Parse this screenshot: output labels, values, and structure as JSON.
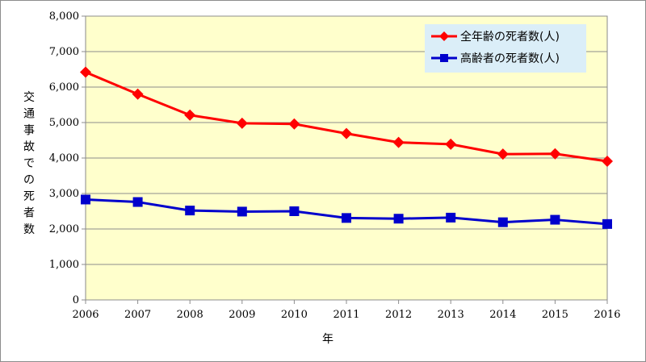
{
  "chart_data": {
    "type": "line",
    "x": [
      2006,
      2007,
      2008,
      2009,
      2010,
      2011,
      2012,
      2013,
      2014,
      2015,
      2016
    ],
    "x_tick_labels": [
      "2006",
      "2007",
      "2008",
      "2009",
      "2010",
      "2011",
      "2012",
      "2013",
      "2014",
      "2015",
      "2016"
    ],
    "y_tick_labels": [
      "0",
      "1,000",
      "2,000",
      "3,000",
      "4,000",
      "5,000",
      "6,000",
      "7,000",
      "8,000"
    ],
    "ylim": [
      0,
      8000
    ],
    "xlabel": "年",
    "ylabel": "交通事故での死者数",
    "grid": true,
    "legend_position": "top-right",
    "plot_background": "#ffffcc",
    "series": [
      {
        "name": "全年齢の死者数(人)",
        "color": "#ff0000",
        "marker": "diamond",
        "values": [
          6420,
          5800,
          5210,
          4980,
          4960,
          4690,
          4440,
          4390,
          4110,
          4120,
          3910
        ]
      },
      {
        "name": "高齢者の死者数(人)",
        "color": "#0000cc",
        "marker": "square",
        "values": [
          2830,
          2760,
          2520,
          2490,
          2500,
          2310,
          2290,
          2320,
          2190,
          2260,
          2140
        ]
      }
    ]
  }
}
